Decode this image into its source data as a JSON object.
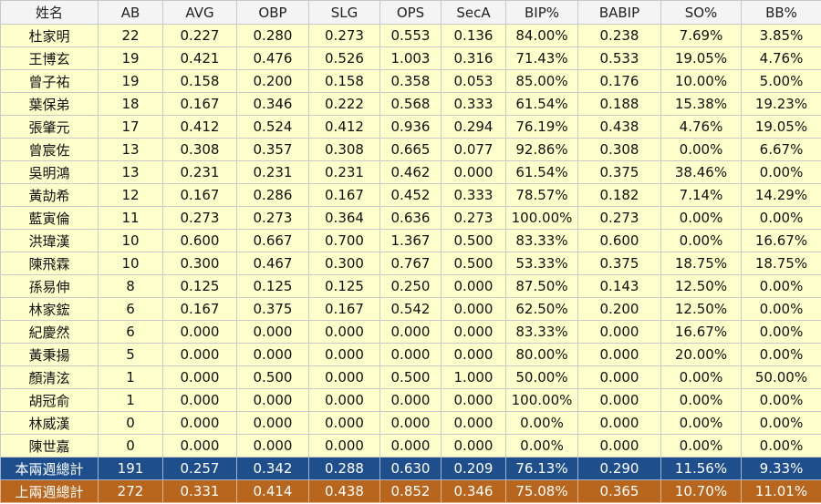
{
  "headers": [
    "姓名",
    "AB",
    "AVG",
    "OBP",
    "SLG",
    "OPS",
    "SecA",
    "BIP%",
    "BABIP",
    "SO%",
    "BB%"
  ],
  "rows": [
    [
      "杜家明",
      "22",
      "0.227",
      "0.280",
      "0.273",
      "0.553",
      "0.136",
      "84.00%",
      "0.238",
      "7.69%",
      "3.85%"
    ],
    [
      "王博玄",
      "19",
      "0.421",
      "0.476",
      "0.526",
      "1.003",
      "0.316",
      "71.43%",
      "0.533",
      "19.05%",
      "4.76%"
    ],
    [
      "曾子祐",
      "19",
      "0.158",
      "0.200",
      "0.158",
      "0.358",
      "0.053",
      "85.00%",
      "0.176",
      "10.00%",
      "5.00%"
    ],
    [
      "葉保弟",
      "18",
      "0.167",
      "0.346",
      "0.222",
      "0.568",
      "0.333",
      "61.54%",
      "0.188",
      "15.38%",
      "19.23%"
    ],
    [
      "張肇元",
      "17",
      "0.412",
      "0.524",
      "0.412",
      "0.936",
      "0.294",
      "76.19%",
      "0.438",
      "4.76%",
      "19.05%"
    ],
    [
      "曾宸佐",
      "13",
      "0.308",
      "0.357",
      "0.308",
      "0.665",
      "0.077",
      "92.86%",
      "0.308",
      "0.00%",
      "6.67%"
    ],
    [
      "吳明鴻",
      "13",
      "0.231",
      "0.231",
      "0.231",
      "0.462",
      "0.000",
      "61.54%",
      "0.375",
      "38.46%",
      "0.00%"
    ],
    [
      "黃劼希",
      "12",
      "0.167",
      "0.286",
      "0.167",
      "0.452",
      "0.333",
      "78.57%",
      "0.182",
      "7.14%",
      "14.29%"
    ],
    [
      "藍寅倫",
      "11",
      "0.273",
      "0.273",
      "0.364",
      "0.636",
      "0.273",
      "100.00%",
      "0.273",
      "0.00%",
      "0.00%"
    ],
    [
      "洪瑋漢",
      "10",
      "0.600",
      "0.667",
      "0.700",
      "1.367",
      "0.500",
      "83.33%",
      "0.600",
      "0.00%",
      "16.67%"
    ],
    [
      "陳飛霖",
      "10",
      "0.300",
      "0.467",
      "0.300",
      "0.767",
      "0.500",
      "53.33%",
      "0.375",
      "18.75%",
      "18.75%"
    ],
    [
      "孫易伸",
      "8",
      "0.125",
      "0.125",
      "0.125",
      "0.250",
      "0.000",
      "87.50%",
      "0.143",
      "12.50%",
      "0.00%"
    ],
    [
      "林家鋐",
      "6",
      "0.167",
      "0.375",
      "0.167",
      "0.542",
      "0.000",
      "62.50%",
      "0.200",
      "12.50%",
      "0.00%"
    ],
    [
      "紀慶然",
      "6",
      "0.000",
      "0.000",
      "0.000",
      "0.000",
      "0.000",
      "83.33%",
      "0.000",
      "16.67%",
      "0.00%"
    ],
    [
      "黃秉揚",
      "5",
      "0.000",
      "0.000",
      "0.000",
      "0.000",
      "0.000",
      "80.00%",
      "0.000",
      "20.00%",
      "0.00%"
    ],
    [
      "顏清泫",
      "1",
      "0.000",
      "0.500",
      "0.000",
      "0.500",
      "1.000",
      "50.00%",
      "0.000",
      "0.00%",
      "50.00%"
    ],
    [
      "胡冠俞",
      "1",
      "0.000",
      "0.000",
      "0.000",
      "0.000",
      "0.000",
      "100.00%",
      "0.000",
      "0.00%",
      "0.00%"
    ],
    [
      "林威漢",
      "0",
      "0.000",
      "0.000",
      "0.000",
      "0.000",
      "0.000",
      "0.00%",
      "0.000",
      "0.00%",
      "0.00%"
    ],
    [
      "陳世嘉",
      "0",
      "0.000",
      "0.000",
      "0.000",
      "0.000",
      "0.000",
      "0.00%",
      "0.000",
      "0.00%",
      "0.00%"
    ]
  ],
  "totals": {
    "current": [
      "本兩週總計",
      "191",
      "0.257",
      "0.342",
      "0.288",
      "0.630",
      "0.209",
      "76.13%",
      "0.290",
      "11.56%",
      "9.33%"
    ],
    "previous": [
      "上兩週總計",
      "272",
      "0.331",
      "0.414",
      "0.438",
      "0.852",
      "0.346",
      "75.08%",
      "0.365",
      "10.70%",
      "11.01%"
    ]
  },
  "colors": {
    "row_bg": "#ffffcc",
    "header_bg": "#f4f4f4",
    "current_total_bg": "#1f4e8c",
    "previous_total_bg": "#b8661e"
  }
}
